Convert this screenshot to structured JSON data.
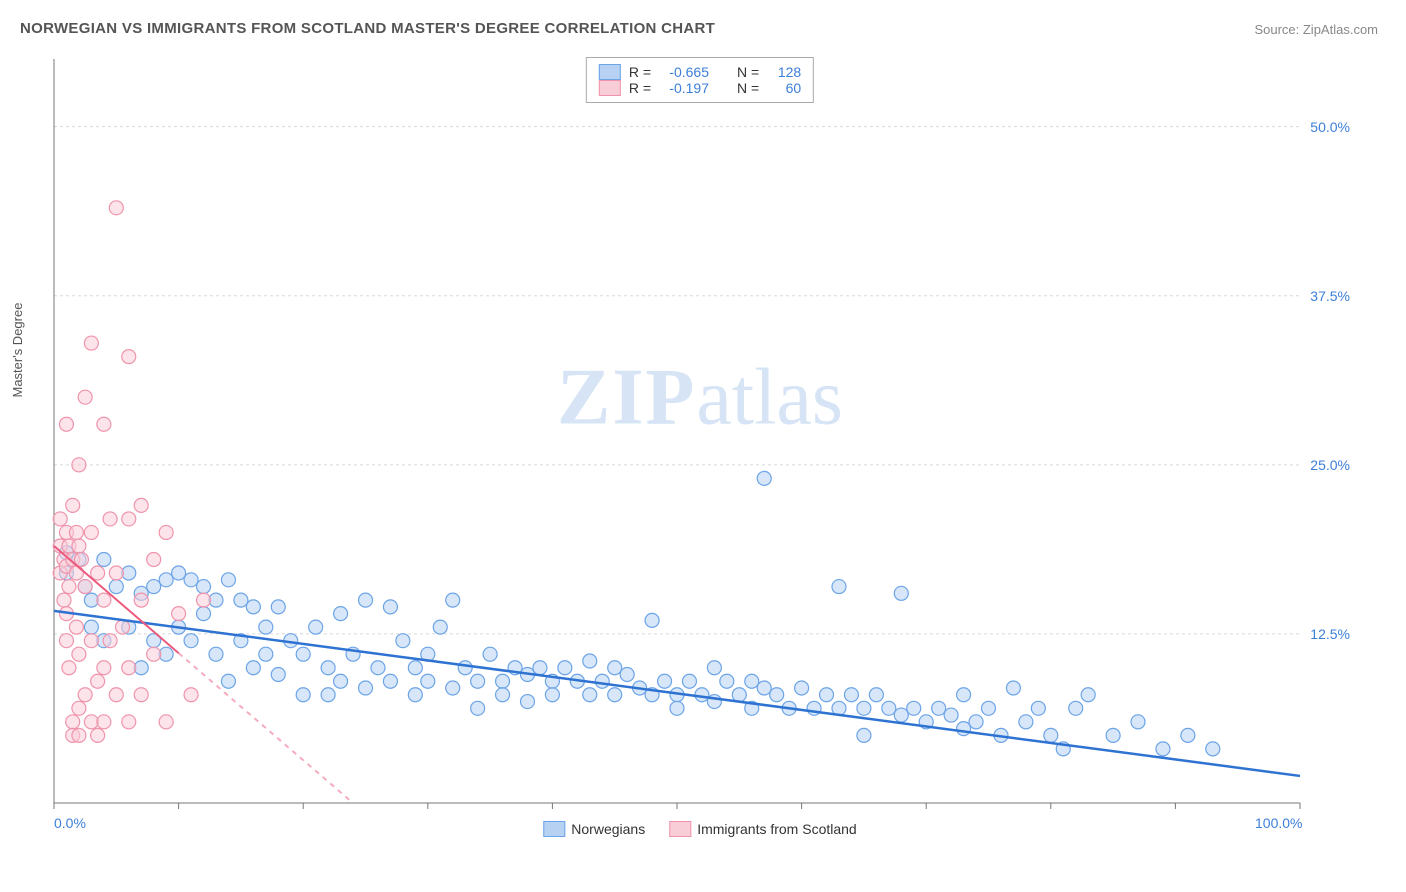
{
  "title": "NORWEGIAN VS IMMIGRANTS FROM SCOTLAND MASTER'S DEGREE CORRELATION CHART",
  "source_label": "Source: ZipAtlas.com",
  "watermark_a": "ZIP",
  "watermark_b": "atlas",
  "ylabel": "Master's Degree",
  "chart": {
    "type": "scatter",
    "xlim": [
      0,
      100
    ],
    "ylim": [
      0,
      55
    ],
    "xticks": [
      0,
      100
    ],
    "xtick_labels": [
      "0.0%",
      "100.0%"
    ],
    "yticks": [
      12.5,
      25.0,
      37.5,
      50.0
    ],
    "ytick_labels": [
      "12.5%",
      "25.0%",
      "37.5%",
      "50.0%"
    ],
    "grid_color": "#d8d8d8",
    "axis_color": "#777777",
    "background_color": "#ffffff",
    "tick_minor_step": 10,
    "stats_box": {
      "rows": [
        {
          "swatch_fill": "#b7d1f2",
          "swatch_stroke": "#6ca4e8",
          "r_label": "R =",
          "r_val": "-0.665",
          "n_label": "N =",
          "n_val": "128"
        },
        {
          "swatch_fill": "#f9cdd8",
          "swatch_stroke": "#f094ab",
          "r_label": "R =",
          "r_val": "-0.197",
          "n_label": "N =",
          "n_val": "60"
        }
      ]
    },
    "series": [
      {
        "name": "Norwegians",
        "color_fill": "#b7d1f2",
        "color_stroke": "#6ca4e8",
        "fill_opacity": 0.55,
        "marker_r": 7,
        "trend": {
          "x1": 0,
          "y1": 14.2,
          "x2": 100,
          "y2": 2.0,
          "stroke": "#2e72d2",
          "width": 2.5,
          "dash_after_x": 100
        },
        "points": [
          [
            1,
            18.5
          ],
          [
            1,
            17
          ],
          [
            2,
            18
          ],
          [
            2.5,
            16
          ],
          [
            3,
            15
          ],
          [
            3,
            13
          ],
          [
            4,
            18
          ],
          [
            4,
            12
          ],
          [
            5,
            16
          ],
          [
            6,
            17
          ],
          [
            6,
            13
          ],
          [
            7,
            15.5
          ],
          [
            7,
            10
          ],
          [
            8,
            16
          ],
          [
            8,
            12
          ],
          [
            9,
            16.5
          ],
          [
            9,
            11
          ],
          [
            10,
            17
          ],
          [
            10,
            13
          ],
          [
            11,
            16.5
          ],
          [
            11,
            12
          ],
          [
            12,
            16
          ],
          [
            12,
            14
          ],
          [
            13,
            15
          ],
          [
            13,
            11
          ],
          [
            14,
            16.5
          ],
          [
            14,
            9
          ],
          [
            15,
            15
          ],
          [
            15,
            12
          ],
          [
            16,
            14.5
          ],
          [
            16,
            10
          ],
          [
            17,
            13
          ],
          [
            17,
            11
          ],
          [
            18,
            14.5
          ],
          [
            18,
            9.5
          ],
          [
            19,
            12
          ],
          [
            20,
            11
          ],
          [
            20,
            8
          ],
          [
            21,
            13
          ],
          [
            22,
            10
          ],
          [
            22,
            8
          ],
          [
            23,
            14
          ],
          [
            23,
            9
          ],
          [
            24,
            11
          ],
          [
            25,
            15
          ],
          [
            25,
            8.5
          ],
          [
            26,
            10
          ],
          [
            27,
            14.5
          ],
          [
            27,
            9
          ],
          [
            28,
            12
          ],
          [
            29,
            10
          ],
          [
            29,
            8
          ],
          [
            30,
            11
          ],
          [
            30,
            9
          ],
          [
            31,
            13
          ],
          [
            32,
            15
          ],
          [
            32,
            8.5
          ],
          [
            33,
            10
          ],
          [
            34,
            9
          ],
          [
            34,
            7
          ],
          [
            35,
            11
          ],
          [
            36,
            9
          ],
          [
            36,
            8
          ],
          [
            37,
            10
          ],
          [
            38,
            9.5
          ],
          [
            38,
            7.5
          ],
          [
            39,
            10
          ],
          [
            40,
            9
          ],
          [
            40,
            8
          ],
          [
            41,
            10
          ],
          [
            42,
            9
          ],
          [
            43,
            8
          ],
          [
            43,
            10.5
          ],
          [
            44,
            9
          ],
          [
            45,
            8
          ],
          [
            45,
            10
          ],
          [
            46,
            9.5
          ],
          [
            47,
            8.5
          ],
          [
            48,
            8
          ],
          [
            48,
            13.5
          ],
          [
            49,
            9
          ],
          [
            50,
            8
          ],
          [
            50,
            7
          ],
          [
            51,
            9
          ],
          [
            52,
            8
          ],
          [
            53,
            7.5
          ],
          [
            53,
            10
          ],
          [
            54,
            9
          ],
          [
            55,
            8
          ],
          [
            56,
            7
          ],
          [
            56,
            9
          ],
          [
            57,
            8.5
          ],
          [
            57,
            24
          ],
          [
            58,
            8
          ],
          [
            59,
            7
          ],
          [
            60,
            8.5
          ],
          [
            61,
            7
          ],
          [
            62,
            8
          ],
          [
            63,
            7
          ],
          [
            63,
            16
          ],
          [
            64,
            8
          ],
          [
            65,
            7
          ],
          [
            65,
            5
          ],
          [
            66,
            8
          ],
          [
            67,
            7
          ],
          [
            68,
            6.5
          ],
          [
            68,
            15.5
          ],
          [
            69,
            7
          ],
          [
            70,
            6
          ],
          [
            71,
            7
          ],
          [
            72,
            6.5
          ],
          [
            73,
            5.5
          ],
          [
            73,
            8
          ],
          [
            74,
            6
          ],
          [
            75,
            7
          ],
          [
            76,
            5
          ],
          [
            77,
            8.5
          ],
          [
            78,
            6
          ],
          [
            79,
            7
          ],
          [
            80,
            5
          ],
          [
            81,
            4
          ],
          [
            82,
            7
          ],
          [
            83,
            8
          ],
          [
            85,
            5
          ],
          [
            87,
            6
          ],
          [
            89,
            4
          ],
          [
            91,
            5
          ],
          [
            93,
            4
          ]
        ]
      },
      {
        "name": "Immigrants from Scotland",
        "color_fill": "#f9cdd8",
        "color_stroke": "#f094ab",
        "fill_opacity": 0.55,
        "marker_r": 7,
        "trend": {
          "x1": 0,
          "y1": 19,
          "x2": 24,
          "y2": 0,
          "stroke": "#ec5a7d",
          "width": 2,
          "dash_after_x": 10
        },
        "points": [
          [
            0.5,
            19
          ],
          [
            0.5,
            17
          ],
          [
            0.5,
            21
          ],
          [
            0.8,
            18
          ],
          [
            0.8,
            15
          ],
          [
            1,
            20
          ],
          [
            1,
            28
          ],
          [
            1,
            17.5
          ],
          [
            1,
            14
          ],
          [
            1,
            12
          ],
          [
            1.2,
            19
          ],
          [
            1.2,
            16
          ],
          [
            1.2,
            10
          ],
          [
            1.5,
            22
          ],
          [
            1.5,
            18
          ],
          [
            1.5,
            6
          ],
          [
            1.5,
            5
          ],
          [
            1.8,
            20
          ],
          [
            1.8,
            17
          ],
          [
            1.8,
            13
          ],
          [
            2,
            25
          ],
          [
            2,
            19
          ],
          [
            2,
            11
          ],
          [
            2,
            7
          ],
          [
            2,
            5
          ],
          [
            2.2,
            18
          ],
          [
            2.5,
            30
          ],
          [
            2.5,
            16
          ],
          [
            2.5,
            8
          ],
          [
            3,
            34
          ],
          [
            3,
            20
          ],
          [
            3,
            12
          ],
          [
            3,
            6
          ],
          [
            3.5,
            17
          ],
          [
            3.5,
            9
          ],
          [
            3.5,
            5
          ],
          [
            4,
            28
          ],
          [
            4,
            15
          ],
          [
            4,
            10
          ],
          [
            4,
            6
          ],
          [
            4.5,
            21
          ],
          [
            4.5,
            12
          ],
          [
            5,
            44
          ],
          [
            5,
            17
          ],
          [
            5,
            8
          ],
          [
            5.5,
            13
          ],
          [
            6,
            33
          ],
          [
            6,
            21
          ],
          [
            6,
            10
          ],
          [
            6,
            6
          ],
          [
            7,
            15
          ],
          [
            7,
            22
          ],
          [
            7,
            8
          ],
          [
            8,
            18
          ],
          [
            8,
            11
          ],
          [
            9,
            20
          ],
          [
            9,
            6
          ],
          [
            10,
            14
          ],
          [
            11,
            8
          ],
          [
            12,
            15
          ]
        ]
      }
    ],
    "legend": {
      "items": [
        {
          "label": "Norwegians",
          "fill": "#b7d1f2",
          "stroke": "#6ca4e8"
        },
        {
          "label": "Immigrants from Scotland",
          "fill": "#f9cdd8",
          "stroke": "#f094ab"
        }
      ]
    }
  }
}
